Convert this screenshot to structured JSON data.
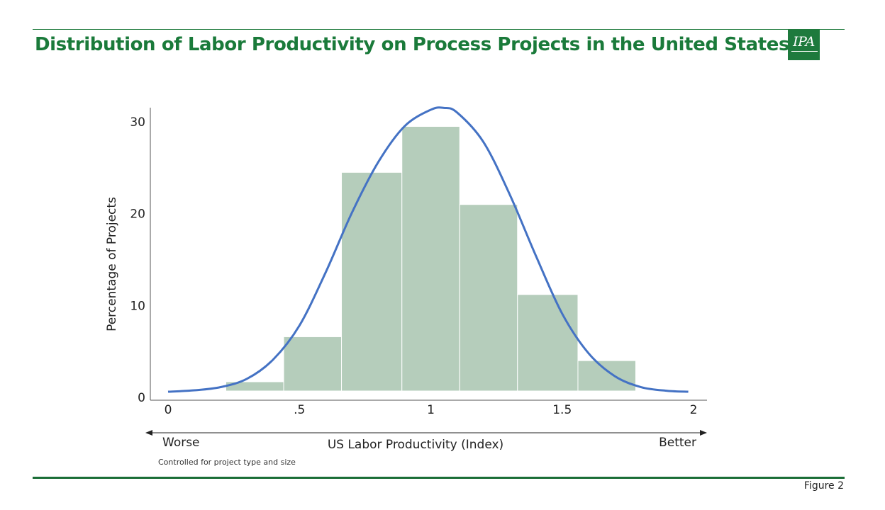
{
  "slide": {
    "title": "Distribution of Labor Productivity on Process Projects in the United States",
    "logo_text": "IPA",
    "footnote": "Controlled for project type and size",
    "figure_label": "Figure 2"
  },
  "colors": {
    "title": "#1a7a3a",
    "bars": "#b5cdbb",
    "curve": "#4472c4",
    "logo_bg": "#1e7a3d"
  },
  "chart_data": {
    "type": "bar",
    "title": "",
    "ylabel": "Percentage of Projects",
    "xlabel": "US Labor Productivity (Index)",
    "direction_labels": {
      "left": "Worse",
      "right": "Better"
    },
    "xlim": [
      0,
      2
    ],
    "ylim": [
      0,
      31
    ],
    "xticks": [
      {
        "value": 0,
        "label": "0"
      },
      {
        "value": 0.5,
        "label": ".5"
      },
      {
        "value": 1,
        "label": "1"
      },
      {
        "value": 1.5,
        "label": "1.5"
      },
      {
        "value": 2,
        "label": "2"
      }
    ],
    "yticks": [
      {
        "value": 0,
        "label": "0"
      },
      {
        "value": 10,
        "label": "10"
      },
      {
        "value": 20,
        "label": "20"
      },
      {
        "value": 30,
        "label": "30"
      }
    ],
    "bins": [
      {
        "x0": 0.22,
        "x1": 0.44,
        "value": 1.7
      },
      {
        "x0": 0.44,
        "x1": 0.66,
        "value": 6.6
      },
      {
        "x0": 0.66,
        "x1": 0.89,
        "value": 24.5
      },
      {
        "x0": 0.89,
        "x1": 1.11,
        "value": 29.5
      },
      {
        "x0": 1.11,
        "x1": 1.33,
        "value": 21.0
      },
      {
        "x0": 1.33,
        "x1": 1.56,
        "value": 11.2
      },
      {
        "x0": 1.56,
        "x1": 1.78,
        "value": 4.0
      },
      {
        "x0": 1.78,
        "x1": 2.0,
        "value": 0.6
      }
    ],
    "curve": {
      "type": "line",
      "x": [
        0,
        0.1,
        0.2,
        0.3,
        0.4,
        0.5,
        0.6,
        0.7,
        0.8,
        0.9,
        1.0,
        1.05,
        1.1,
        1.2,
        1.3,
        1.4,
        1.5,
        1.6,
        1.7,
        1.8,
        1.9,
        1.98
      ],
      "y": [
        0.0,
        0.15,
        0.5,
        1.4,
        3.5,
        7.2,
        13.0,
        19.5,
        25.0,
        28.9,
        30.7,
        30.9,
        30.4,
        27.2,
        21.5,
        14.8,
        8.5,
        4.2,
        1.7,
        0.5,
        0.1,
        0.0
      ]
    },
    "grid": false,
    "legend": "none"
  }
}
